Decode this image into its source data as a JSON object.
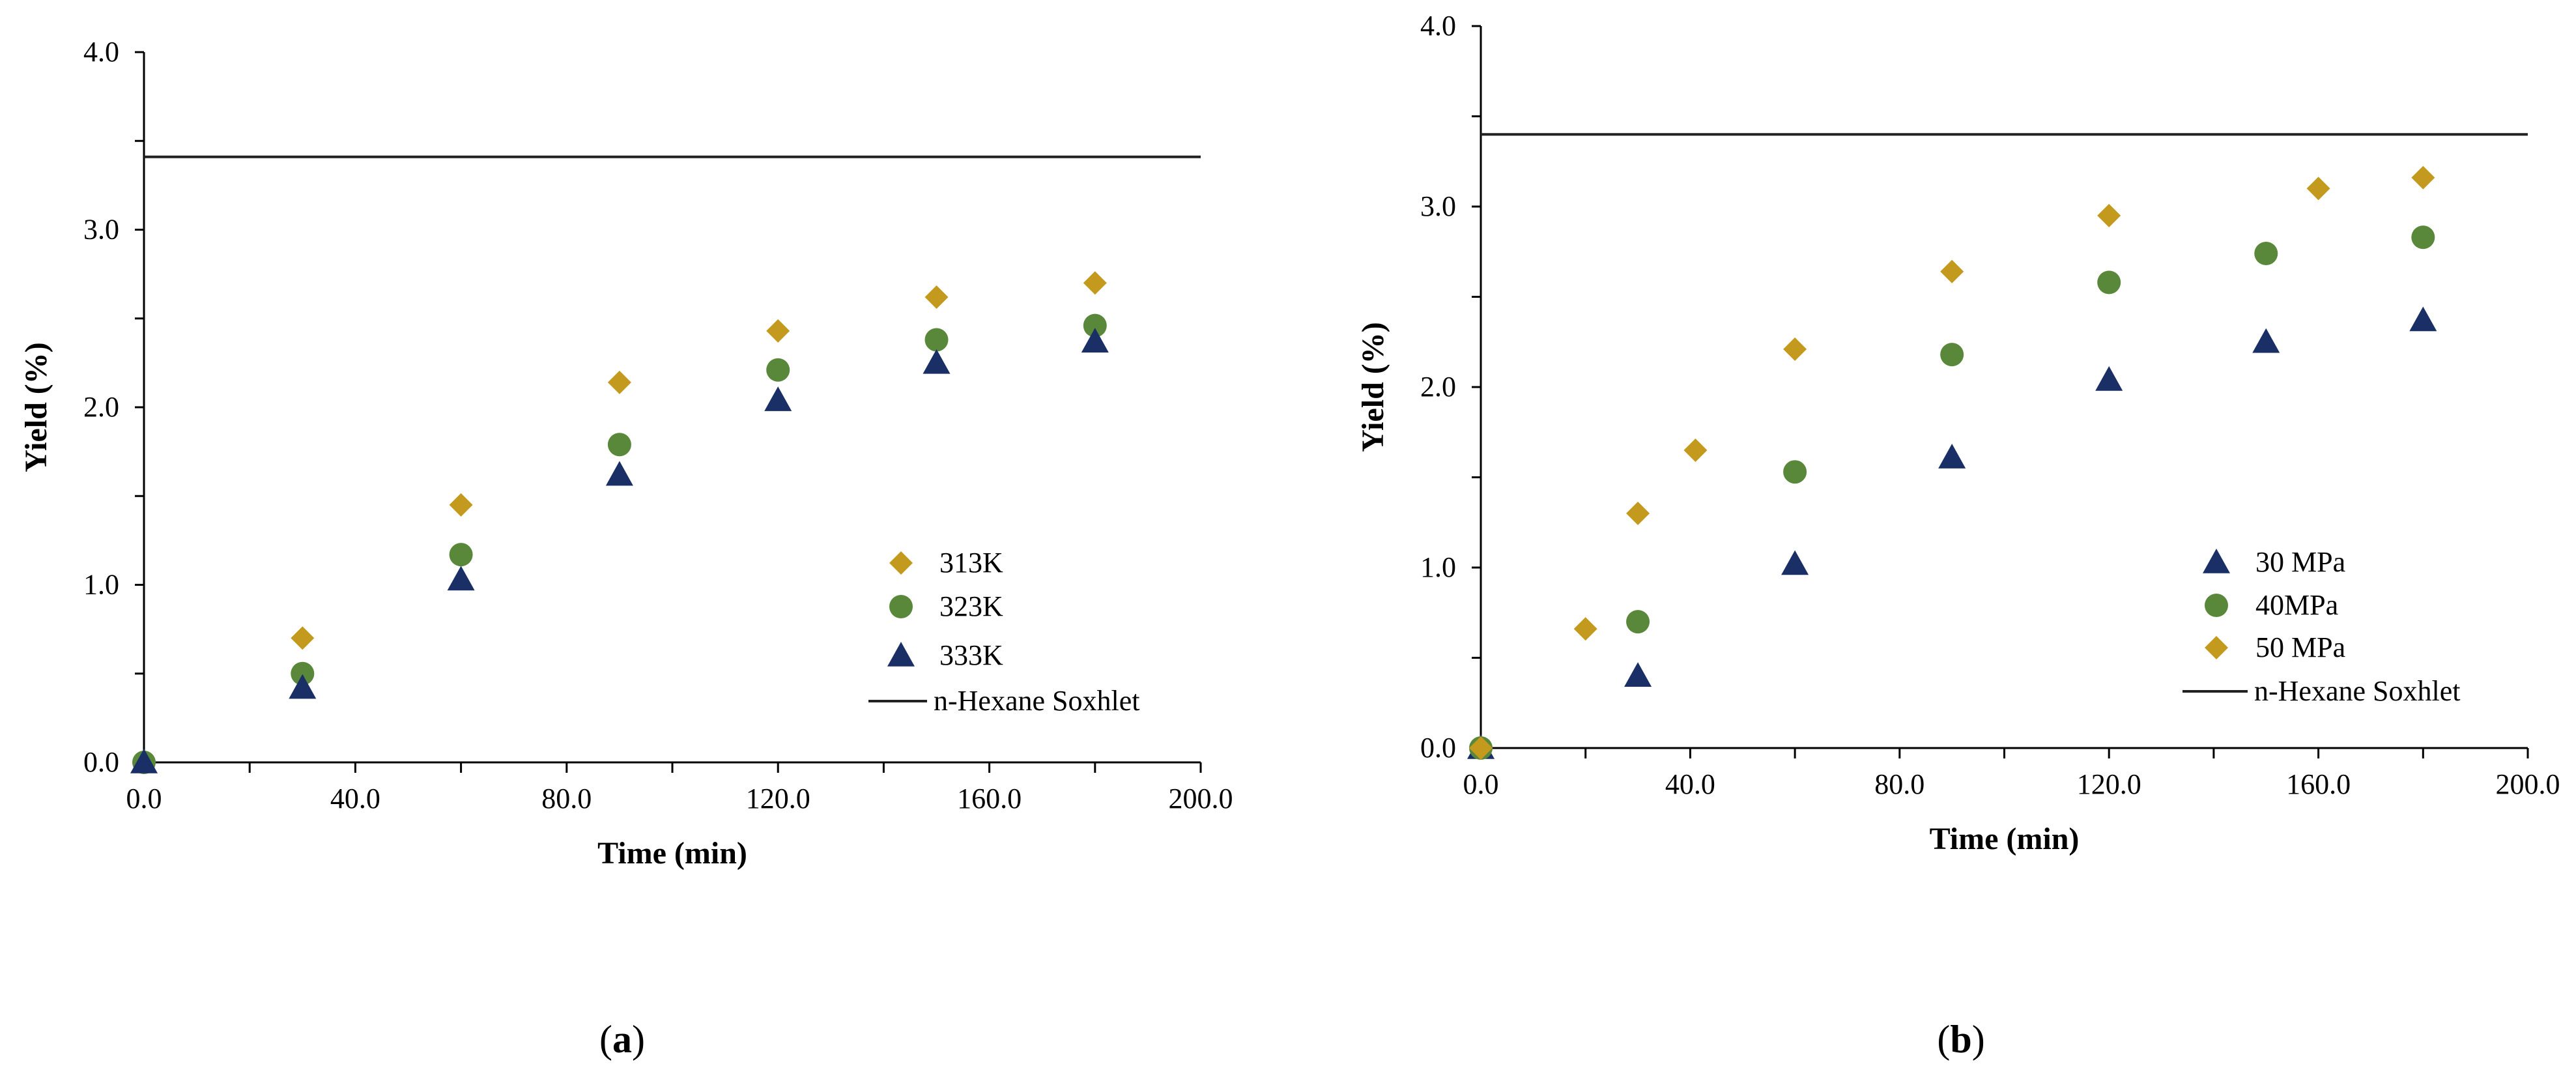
{
  "chart_data": [
    {
      "id": "a",
      "type": "scatter",
      "caption": "a",
      "xlabel": "Time (min)",
      "ylabel": "Yield (%)",
      "xlim": [
        0,
        200
      ],
      "ylim": [
        0,
        4
      ],
      "xticks": [
        "0.0",
        "40.0",
        "80.0",
        "120.0",
        "160.0",
        "200.0"
      ],
      "yticks": [
        "0.0",
        "1.0",
        "2.0",
        "3.0",
        "4.0"
      ],
      "legend_position": "lower-right",
      "series": [
        {
          "name": "313K",
          "marker": "diamond",
          "color": "#c39a1d",
          "points": [
            [
              0,
              0
            ],
            [
              30,
              0.7
            ],
            [
              60,
              1.45
            ],
            [
              90,
              2.14
            ],
            [
              120,
              2.43
            ],
            [
              150,
              2.62
            ],
            [
              180,
              2.7
            ]
          ]
        },
        {
          "name": "323K",
          "marker": "circle",
          "color": "#5a883b",
          "points": [
            [
              0,
              0
            ],
            [
              30,
              0.5
            ],
            [
              60,
              1.17
            ],
            [
              90,
              1.79
            ],
            [
              120,
              2.21
            ],
            [
              150,
              2.38
            ],
            [
              180,
              2.46
            ]
          ]
        },
        {
          "name": "333K",
          "marker": "triangle",
          "color": "#1a2f66",
          "points": [
            [
              0,
              0
            ],
            [
              30,
              0.42
            ],
            [
              60,
              1.03
            ],
            [
              90,
              1.62
            ],
            [
              120,
              2.04
            ],
            [
              150,
              2.25
            ],
            [
              180,
              2.37
            ]
          ]
        }
      ],
      "reference_line": {
        "name": "n-Hexane Soxhlet",
        "value": 3.41,
        "color": "#222222"
      },
      "legend_order": [
        "313K",
        "323K",
        "333K",
        "n-Hexane Soxhlet"
      ]
    },
    {
      "id": "b",
      "type": "scatter",
      "caption": "b",
      "xlabel": "Time (min)",
      "ylabel": "Yield (%)",
      "xlim": [
        0,
        200
      ],
      "ylim": [
        0,
        4
      ],
      "xticks": [
        "0.0",
        "40.0",
        "80.0",
        "120.0",
        "160.0",
        "200.0"
      ],
      "yticks": [
        "0.0",
        "1.0",
        "2.0",
        "3.0",
        "4.0"
      ],
      "legend_position": "lower-right",
      "series": [
        {
          "name": "30 MPa",
          "marker": "triangle",
          "color": "#1a2f66",
          "points": [
            [
              0,
              0
            ],
            [
              30,
              0.4
            ],
            [
              60,
              1.02
            ],
            [
              90,
              1.61
            ],
            [
              120,
              2.04
            ],
            [
              150,
              2.25
            ],
            [
              180,
              2.37
            ]
          ]
        },
        {
          "name": "40MPa",
          "marker": "circle",
          "color": "#5a883b",
          "points": [
            [
              0,
              0
            ],
            [
              30,
              0.7
            ],
            [
              60,
              1.53
            ],
            [
              90,
              2.18
            ],
            [
              120,
              2.58
            ],
            [
              150,
              2.74
            ],
            [
              180,
              2.83
            ]
          ]
        },
        {
          "name": "50 MPa",
          "marker": "diamond",
          "color": "#c39a1d",
          "points": [
            [
              0,
              0
            ],
            [
              20,
              0.66
            ],
            [
              30,
              1.3
            ],
            [
              41,
              1.65
            ],
            [
              60,
              2.21
            ],
            [
              90,
              2.64
            ],
            [
              120,
              2.95
            ],
            [
              160,
              3.1
            ],
            [
              180,
              3.16
            ]
          ]
        }
      ],
      "reference_line": {
        "name": "n-Hexane Soxhlet",
        "value": 3.4,
        "color": "#222222"
      },
      "legend_order": [
        "30 MPa",
        "40MPa",
        "50 MPa",
        "n-Hexane Soxhlet"
      ]
    }
  ]
}
